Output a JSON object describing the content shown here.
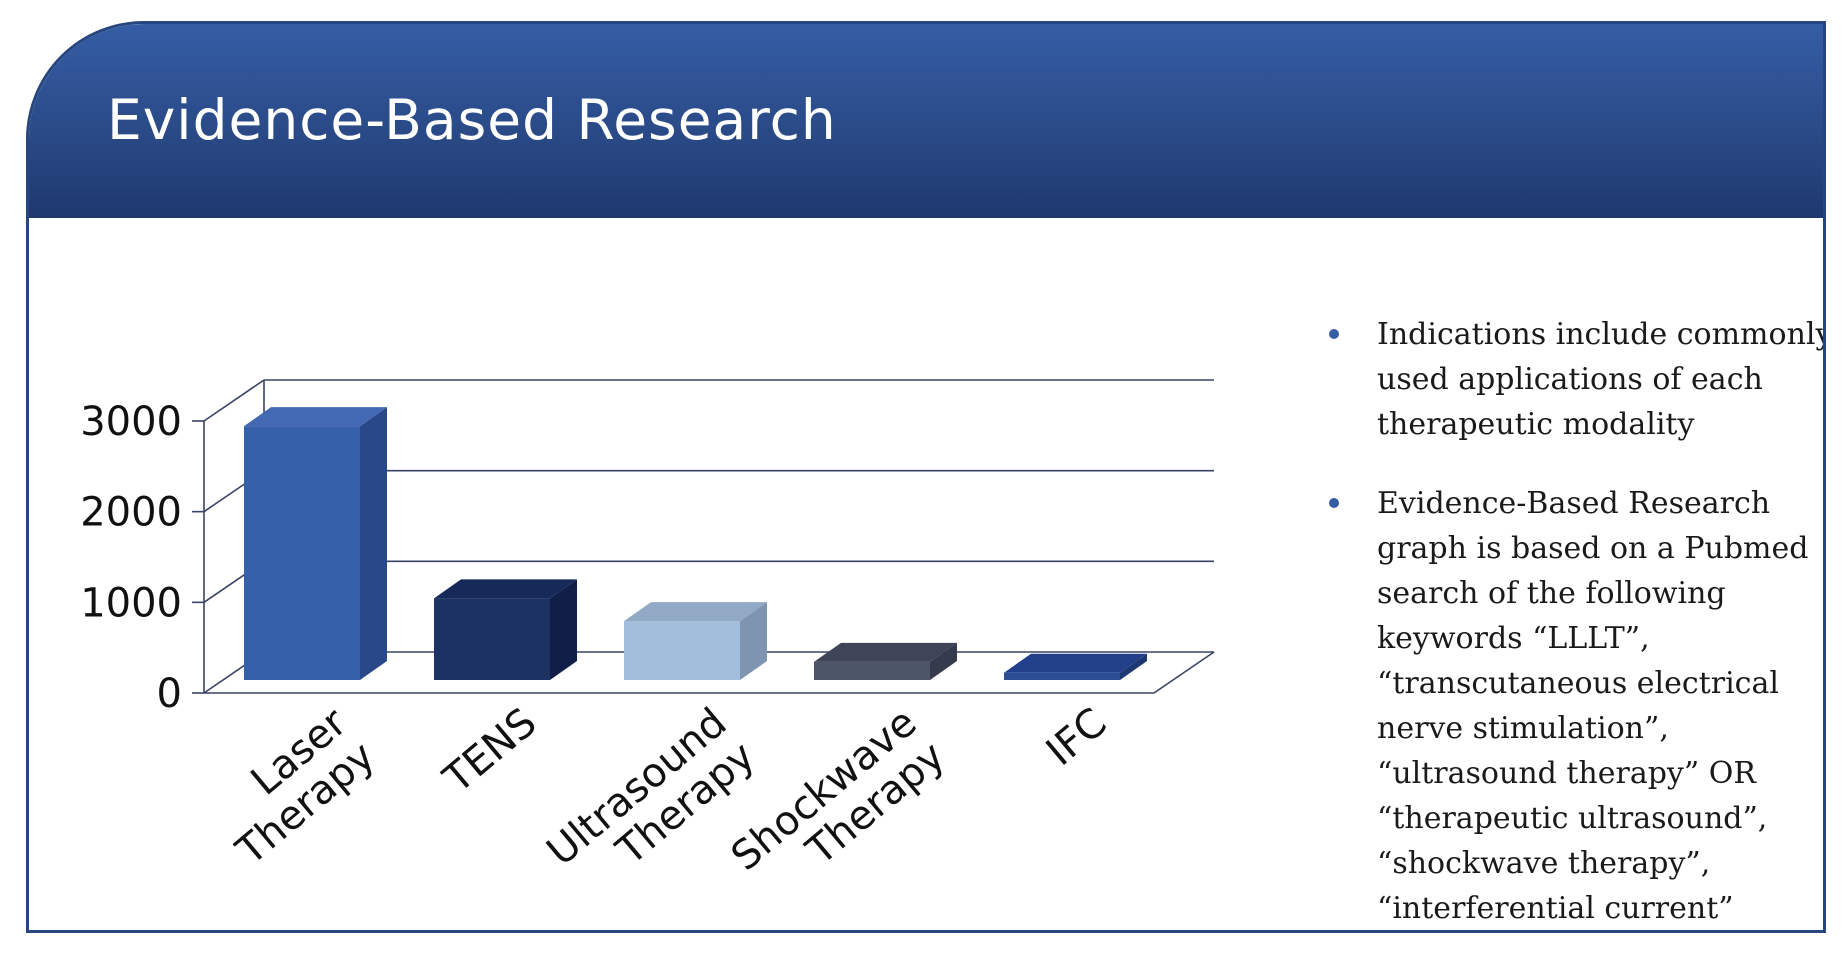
{
  "header": {
    "title": "Evidence-Based Research"
  },
  "notes": [
    "Indications  include commonly used applications of each therapeutic modality",
    "Evidence-Based Research graph is based on a Pubmed search of the following keywords “LLLT”, “transcutaneous electrical nerve stimulation”, “ultrasound therapy” OR “therapeutic ultrasound”, “shockwave therapy”, “interferential current”"
  ],
  "colors": {
    "header": "#2a4a87",
    "border": "#27457f",
    "bullet": "#355da5"
  },
  "chart_data": {
    "type": "bar",
    "title": "",
    "xlabel": "",
    "ylabel": "",
    "ylim": [
      0,
      3000
    ],
    "yticks": [
      0,
      1000,
      2000,
      3000
    ],
    "grid": true,
    "categories": [
      {
        "lines": [
          "Laser",
          "Therapy"
        ]
      },
      {
        "lines": [
          "TENS"
        ]
      },
      {
        "lines": [
          "Ultrasound",
          "Therapy"
        ]
      },
      {
        "lines": [
          "Shockwave",
          "Therapy"
        ]
      },
      {
        "lines": [
          "IFC"
        ]
      }
    ],
    "values": [
      2800,
      900,
      650,
      200,
      80
    ],
    "bar_colors": [
      {
        "front": "#3760ab",
        "side": "#29488a",
        "top": "#4469b3"
      },
      {
        "front": "#1b3263",
        "side": "#0f1f47",
        "top": "#152a58"
      },
      {
        "front": "#a3bedc",
        "side": "#7f94b1",
        "top": "#91a9c4"
      },
      {
        "front": "#4d5568",
        "side": "#353b4c",
        "top": "#3f4557"
      },
      {
        "front": "#2b4d94",
        "side": "#1d3773",
        "top": "#22408a"
      }
    ]
  }
}
